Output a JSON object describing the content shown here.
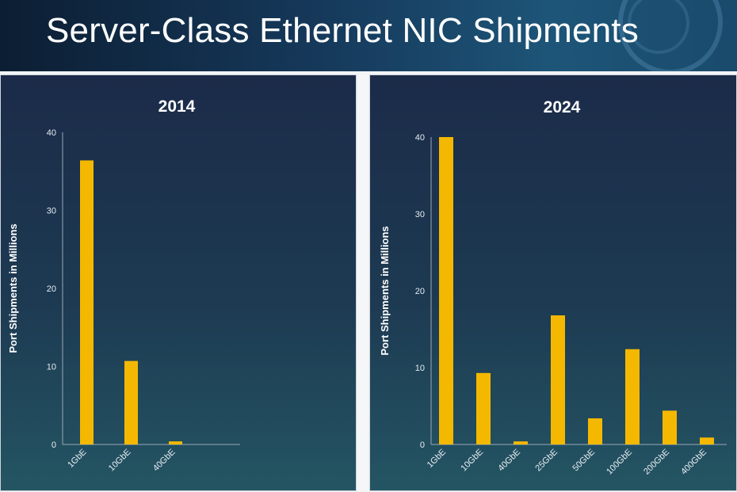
{
  "slide": {
    "title": "Server-Class Ethernet NIC Shipments"
  },
  "colors": {
    "bar": "#f5b800",
    "axis": "#9aa9b6",
    "text": "#ffffff"
  },
  "chart_data": [
    {
      "type": "bar",
      "title": "2014",
      "ylabel": "Port Shipments in Millions",
      "ylim": [
        0,
        40
      ],
      "yticks": [
        "0",
        "10",
        "20",
        "30",
        "40"
      ],
      "categories": [
        "1GbE",
        "10GbE",
        "40GbE"
      ],
      "values": [
        36.4,
        10.7,
        0.4
      ],
      "grid": false
    },
    {
      "type": "bar",
      "title": "2024",
      "ylabel": "Port Shipments in Millions",
      "ylim": [
        0,
        40
      ],
      "yticks": [
        "0",
        "10",
        "20",
        "30",
        "40"
      ],
      "categories": [
        "1GbE",
        "10GbE",
        "40GbE",
        "25GbE",
        "50GbE",
        "100GbE",
        "200GbE",
        "400GbE"
      ],
      "values": [
        40,
        9.3,
        0.4,
        16.8,
        3.4,
        12.4,
        4.4,
        0.9
      ],
      "grid": false
    }
  ]
}
